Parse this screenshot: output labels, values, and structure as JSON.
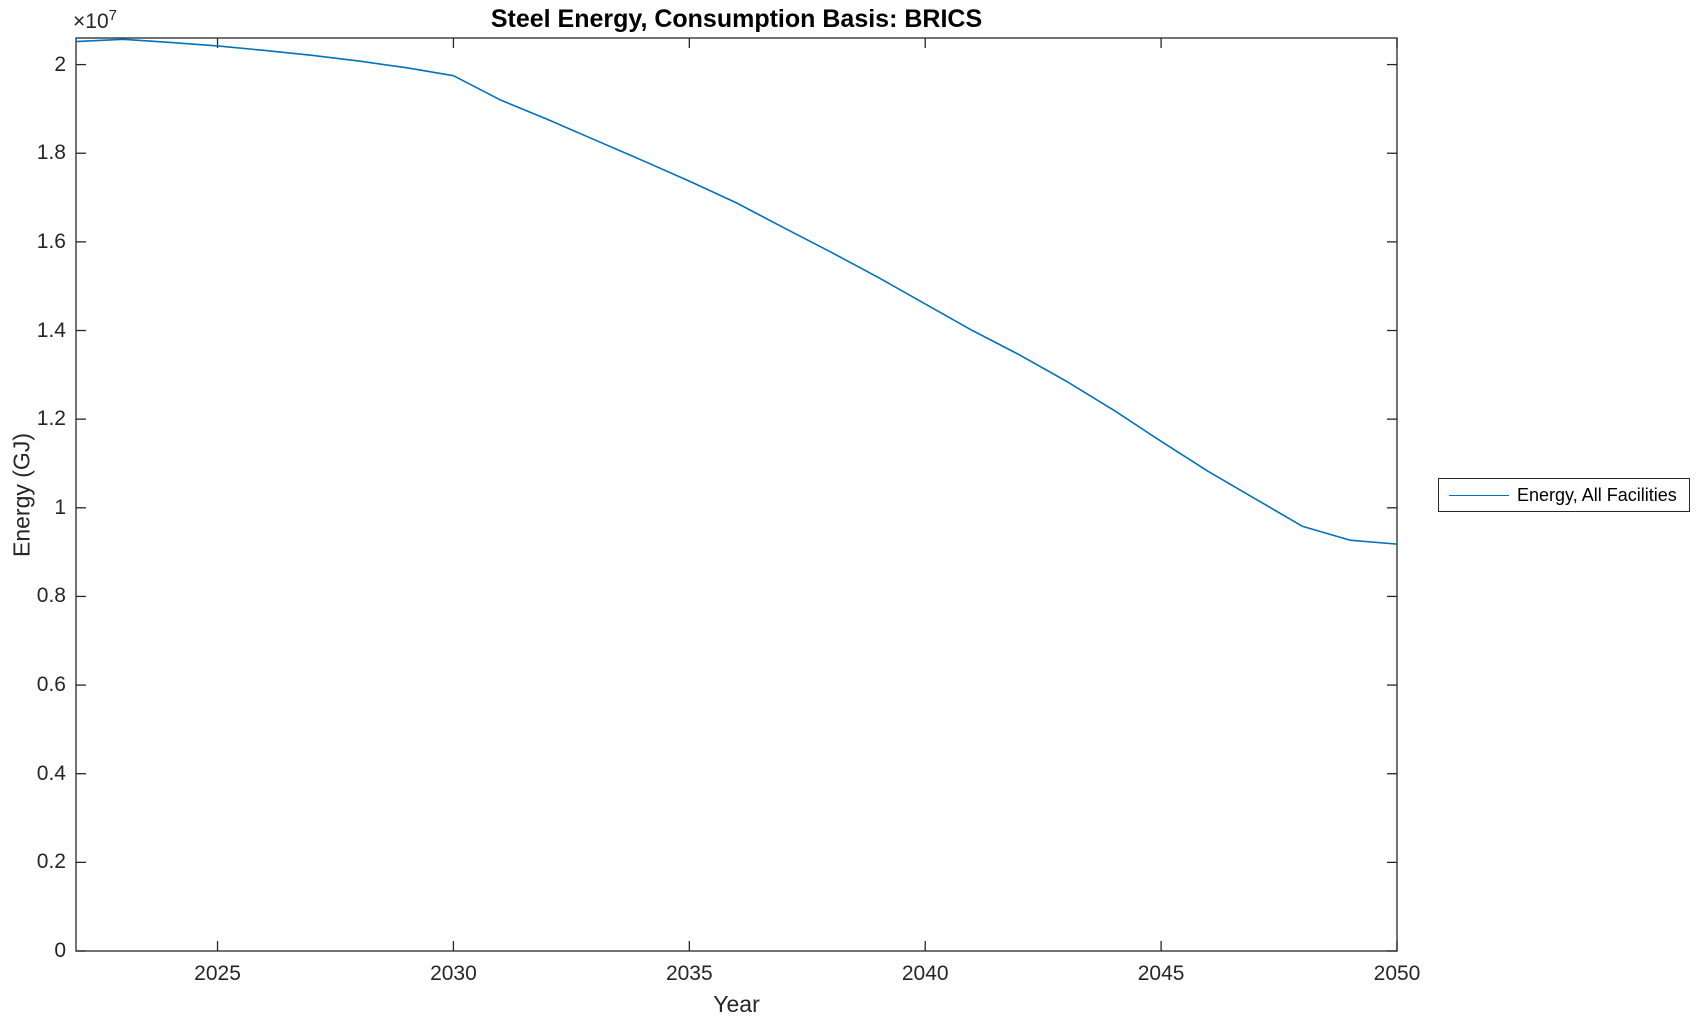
{
  "figure": {
    "title": "Steel Energy, Consumption Basis: BRICS",
    "axes": {
      "xlabel": "Year",
      "ylabel": "Energy (GJ)",
      "y_multiplier_base": "×10",
      "y_multiplier_exponent": "7"
    },
    "legend": {
      "label": "Energy, All Facilities",
      "line_color": "#0072BD"
    },
    "colors": {
      "line": "#0072BD",
      "axis": "#262626",
      "title_text": "#000000",
      "background": "#FFFFFF"
    }
  },
  "chart_data": {
    "type": "line",
    "title": "Steel Energy, Consumption Basis: BRICS",
    "xlabel": "Year",
    "ylabel": "Energy (GJ)",
    "x": [
      2022,
      2023,
      2024,
      2025,
      2026,
      2027,
      2028,
      2029,
      2030,
      2031,
      2032,
      2033,
      2034,
      2035,
      2036,
      2037,
      2038,
      2039,
      2040,
      2041,
      2042,
      2043,
      2044,
      2045,
      2046,
      2047,
      2048,
      2049,
      2050
    ],
    "series": [
      {
        "name": "Energy, All Facilities",
        "color": "#0072BD",
        "values": [
          20520000,
          20570000,
          20500000,
          20420000,
          20320000,
          20210000,
          20080000,
          19930000,
          19750000,
          19200000,
          18760000,
          18300000,
          17840000,
          17370000,
          16880000,
          16320000,
          15770000,
          15200000,
          14600000,
          14000000,
          13450000,
          12850000,
          12200000,
          11500000,
          10820000,
          10200000,
          9580000,
          9270000,
          9180000
        ]
      }
    ],
    "xlim": [
      2022,
      2050
    ],
    "ylim": [
      0,
      20600000
    ],
    "x_ticks": [
      2025,
      2030,
      2035,
      2040,
      2045,
      2050
    ],
    "y_ticks": [
      0,
      2000000,
      4000000,
      6000000,
      8000000,
      10000000,
      12000000,
      14000000,
      16000000,
      18000000,
      20000000
    ],
    "y_tick_scale": 10000000,
    "y_tick_scale_label": "×10^7",
    "grid": false,
    "legend_position": "right-outside-middle"
  }
}
